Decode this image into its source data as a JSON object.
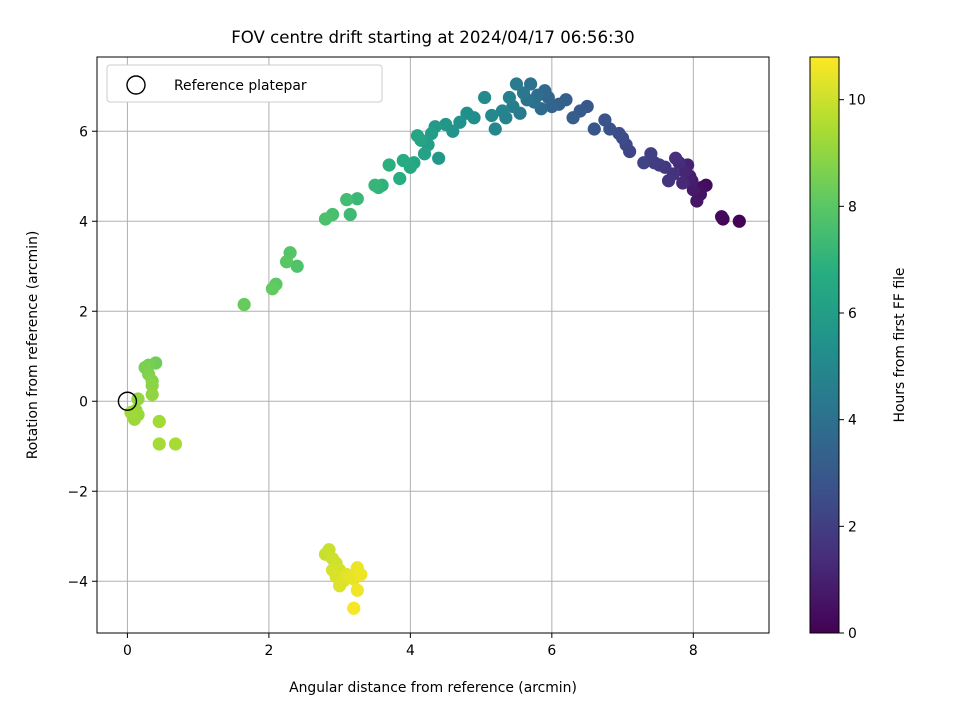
{
  "chart_data": {
    "type": "scatter",
    "title": "FOV centre drift starting at 2024/04/17 06:56:30",
    "xlabel": "Angular distance from reference (arcmin)",
    "ylabel": "Rotation from reference (arcmin)",
    "xlim": [
      -0.43,
      9.07
    ],
    "ylim": [
      -5.15,
      7.65
    ],
    "xticks": [
      0,
      2,
      4,
      6,
      8
    ],
    "yticks": [
      -4,
      -2,
      0,
      2,
      4,
      6
    ],
    "xtick_labels": [
      "0",
      "2",
      "4",
      "6",
      "8"
    ],
    "ytick_labels": [
      "−4",
      "−2",
      "0",
      "2",
      "4",
      "6"
    ],
    "grid": true,
    "legend": {
      "position": "top-left",
      "entries": [
        "Reference platepar"
      ]
    },
    "reference_point": {
      "x": 0,
      "y": 0
    },
    "colorbar": {
      "label": "Hours from first FF file",
      "range": [
        0,
        10.8
      ],
      "ticks": [
        0,
        2,
        4,
        6,
        8,
        10
      ],
      "tick_labels": [
        "0",
        "2",
        "4",
        "6",
        "8",
        "10"
      ],
      "colormap": "viridis"
    },
    "points": [
      [
        8.65,
        4.0,
        0.05
      ],
      [
        8.42,
        4.05,
        0.15
      ],
      [
        8.4,
        4.1,
        0.25
      ],
      [
        8.18,
        4.8,
        0.35
      ],
      [
        8.12,
        4.75,
        0.45
      ],
      [
        8.1,
        4.6,
        0.55
      ],
      [
        8.05,
        4.45,
        0.65
      ],
      [
        8.0,
        4.7,
        0.75
      ],
      [
        7.98,
        4.9,
        0.85
      ],
      [
        7.95,
        5.0,
        0.95
      ],
      [
        7.92,
        5.25,
        1.05
      ],
      [
        7.88,
        5.1,
        1.15
      ],
      [
        7.85,
        4.85,
        1.25
      ],
      [
        7.8,
        5.3,
        1.35
      ],
      [
        7.75,
        5.4,
        1.45
      ],
      [
        7.72,
        5.05,
        1.55
      ],
      [
        7.65,
        4.9,
        1.65
      ],
      [
        7.6,
        5.2,
        1.75
      ],
      [
        7.52,
        5.25,
        1.85
      ],
      [
        7.45,
        5.3,
        1.95
      ],
      [
        7.4,
        5.5,
        2.05
      ],
      [
        7.3,
        5.3,
        2.15
      ],
      [
        7.1,
        5.55,
        2.25
      ],
      [
        7.05,
        5.7,
        2.35
      ],
      [
        7.0,
        5.85,
        2.45
      ],
      [
        6.95,
        5.95,
        2.55
      ],
      [
        6.82,
        6.05,
        2.65
      ],
      [
        6.75,
        6.25,
        2.75
      ],
      [
        6.6,
        6.05,
        2.85
      ],
      [
        6.5,
        6.55,
        2.95
      ],
      [
        6.4,
        6.45,
        3.05
      ],
      [
        6.3,
        6.3,
        3.15
      ],
      [
        6.2,
        6.7,
        3.25
      ],
      [
        6.1,
        6.6,
        3.35
      ],
      [
        6.0,
        6.55,
        3.45
      ],
      [
        5.95,
        6.75,
        3.55
      ],
      [
        5.9,
        6.9,
        3.65
      ],
      [
        5.85,
        6.5,
        3.75
      ],
      [
        5.8,
        6.8,
        3.85
      ],
      [
        5.75,
        6.65,
        3.95
      ],
      [
        5.7,
        7.05,
        4.05
      ],
      [
        5.65,
        6.7,
        4.15
      ],
      [
        5.6,
        6.85,
        4.25
      ],
      [
        5.55,
        6.4,
        4.35
      ],
      [
        5.5,
        7.05,
        4.45
      ],
      [
        5.45,
        6.55,
        4.55
      ],
      [
        5.4,
        6.75,
        4.65
      ],
      [
        5.35,
        6.3,
        4.75
      ],
      [
        5.3,
        6.45,
        4.85
      ],
      [
        5.2,
        6.05,
        4.95
      ],
      [
        5.15,
        6.35,
        5.05
      ],
      [
        5.05,
        6.75,
        5.15
      ],
      [
        4.9,
        6.3,
        5.25
      ],
      [
        4.8,
        6.4,
        5.35
      ],
      [
        4.7,
        6.2,
        5.45
      ],
      [
        4.6,
        6.0,
        5.55
      ],
      [
        4.5,
        6.15,
        5.65
      ],
      [
        4.4,
        5.4,
        5.75
      ],
      [
        4.35,
        6.1,
        5.85
      ],
      [
        4.3,
        5.95,
        5.95
      ],
      [
        4.25,
        5.7,
        6.05
      ],
      [
        4.2,
        5.5,
        6.15
      ],
      [
        4.15,
        5.8,
        6.25
      ],
      [
        4.1,
        5.9,
        6.35
      ],
      [
        4.05,
        5.3,
        6.45
      ],
      [
        4.0,
        5.2,
        6.55
      ],
      [
        3.9,
        5.35,
        6.65
      ],
      [
        3.85,
        4.95,
        6.75
      ],
      [
        3.7,
        5.25,
        6.85
      ],
      [
        3.6,
        4.8,
        6.95
      ],
      [
        3.55,
        4.75,
        7.05
      ],
      [
        3.5,
        4.8,
        7.15
      ],
      [
        3.25,
        4.5,
        7.25
      ],
      [
        3.15,
        4.15,
        7.35
      ],
      [
        3.1,
        4.48,
        7.45
      ],
      [
        2.9,
        4.15,
        7.55
      ],
      [
        2.8,
        4.05,
        7.65
      ],
      [
        2.4,
        3.0,
        7.75
      ],
      [
        2.3,
        3.3,
        7.85
      ],
      [
        2.25,
        3.1,
        7.95
      ],
      [
        2.1,
        2.6,
        8.05
      ],
      [
        2.05,
        2.5,
        8.15
      ],
      [
        1.65,
        2.15,
        8.25
      ],
      [
        0.4,
        0.85,
        8.4
      ],
      [
        0.3,
        0.8,
        8.5
      ],
      [
        0.25,
        0.75,
        8.6
      ],
      [
        0.3,
        0.6,
        8.7
      ],
      [
        0.35,
        0.45,
        8.8
      ],
      [
        0.35,
        0.35,
        8.9
      ],
      [
        0.35,
        0.15,
        9.0
      ],
      [
        0.15,
        0.05,
        9.05
      ],
      [
        0.12,
        -0.2,
        9.1
      ],
      [
        0.15,
        -0.3,
        9.15
      ],
      [
        0.1,
        -0.4,
        9.2
      ],
      [
        0.05,
        -0.25,
        9.25
      ],
      [
        0.45,
        -0.45,
        9.3
      ],
      [
        0.45,
        -0.95,
        9.35
      ],
      [
        0.68,
        -0.95,
        9.4
      ],
      [
        2.8,
        -3.4,
        9.9
      ],
      [
        2.85,
        -3.3,
        9.95
      ],
      [
        2.9,
        -3.5,
        10.0
      ],
      [
        2.95,
        -3.6,
        10.05
      ],
      [
        3.0,
        -3.75,
        10.1
      ],
      [
        2.9,
        -3.75,
        10.15
      ],
      [
        2.95,
        -3.9,
        10.2
      ],
      [
        3.0,
        -4.1,
        10.25
      ],
      [
        3.05,
        -4.0,
        10.3
      ],
      [
        3.1,
        -3.85,
        10.35
      ],
      [
        3.15,
        -3.9,
        10.4
      ],
      [
        3.2,
        -3.95,
        10.45
      ],
      [
        3.25,
        -3.7,
        10.5
      ],
      [
        3.3,
        -3.85,
        10.55
      ],
      [
        3.25,
        -4.2,
        10.6
      ],
      [
        3.2,
        -4.6,
        10.7
      ]
    ]
  }
}
